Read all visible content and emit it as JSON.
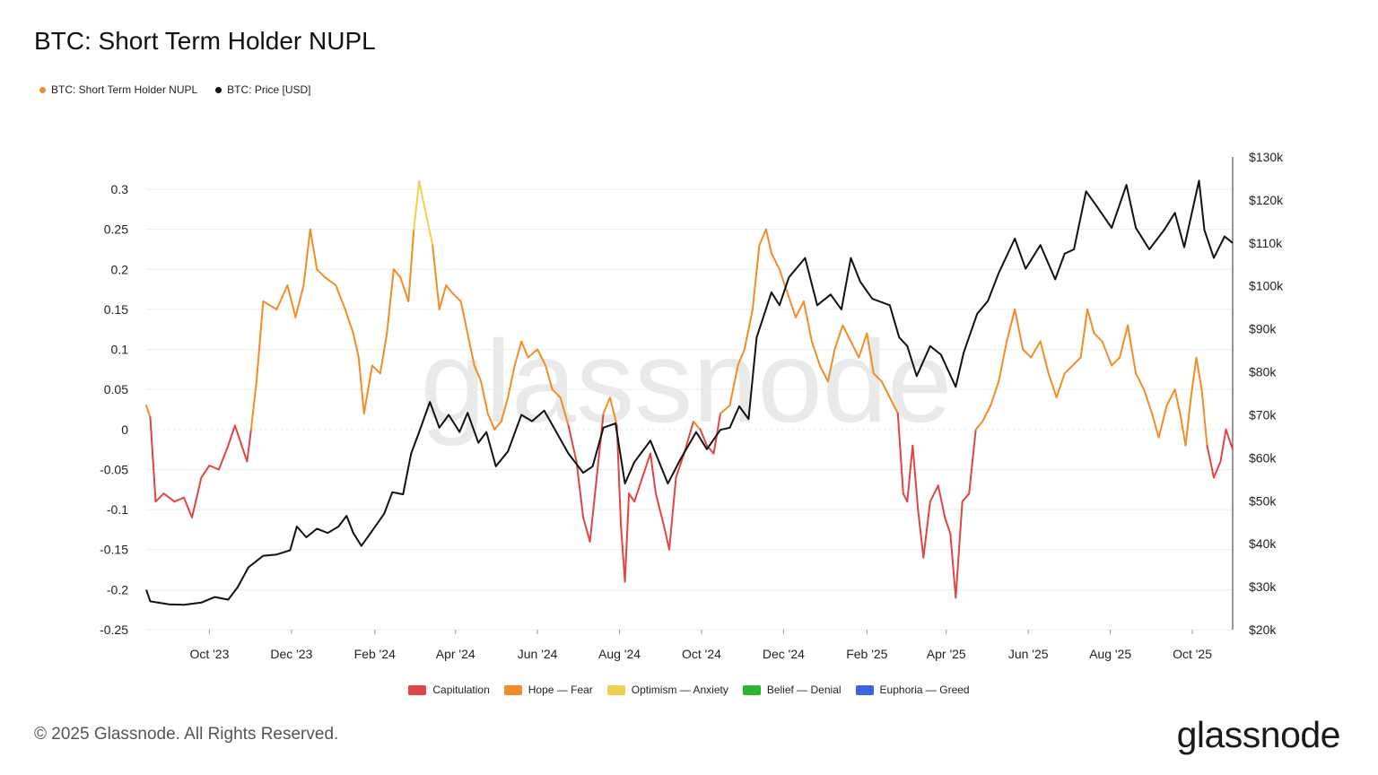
{
  "title": "BTC: Short Term Holder NUPL",
  "top_legend": [
    {
      "label": "BTC: Short Term Holder NUPL",
      "color": "#f28c28"
    },
    {
      "label": "BTC: Price [USD]",
      "color": "#111111"
    }
  ],
  "zone_legend": [
    {
      "label": "Capitulation",
      "color": "#e04545"
    },
    {
      "label": "Hope — Fear",
      "color": "#f28c28"
    },
    {
      "label": "Optimism — Anxiety",
      "color": "#f0d050"
    },
    {
      "label": "Belief — Denial",
      "color": "#2ab52a"
    },
    {
      "label": "Euphoria — Greed",
      "color": "#3e63e0"
    }
  ],
  "footer": "© 2025 Glassnode. All Rights Reserved.",
  "brand": "glassnode",
  "watermark": "glassnode",
  "chart_data": {
    "type": "line",
    "x_ticks": [
      "Oct '23",
      "Dec '23",
      "Feb '24",
      "Apr '24",
      "Jun '24",
      "Aug '24",
      "Oct '24",
      "Dec '24",
      "Feb '25",
      "Apr '25",
      "Jun '25",
      "Aug '25",
      "Oct '25"
    ],
    "left_axis": {
      "ticks": [
        "0.3",
        "0.25",
        "0.2",
        "0.15",
        "0.1",
        "0.05",
        "0",
        "-0.05",
        "-0.1",
        "-0.15",
        "-0.2",
        "-0.25"
      ],
      "ylim": [
        -0.25,
        0.3
      ]
    },
    "right_axis": {
      "ticks": [
        "$130k",
        "$120k",
        "$110k",
        "$100k",
        "$90k",
        "$80k",
        "$70k",
        "$60k",
        "$50k",
        "$40k",
        "$30k",
        "$20k"
      ],
      "ylim": [
        20000,
        130000
      ]
    },
    "x_range": [
      "2023-08-15",
      "2025-10-31"
    ],
    "series": [
      {
        "name": "BTC: Short Term Holder NUPL",
        "axis": "left",
        "colored_by_zone": true,
        "points": [
          [
            "2023-08-15",
            0.03
          ],
          [
            "2023-08-18",
            0.015
          ],
          [
            "2023-08-22",
            -0.09
          ],
          [
            "2023-08-28",
            -0.08
          ],
          [
            "2023-09-05",
            -0.09
          ],
          [
            "2023-09-12",
            -0.085
          ],
          [
            "2023-09-18",
            -0.11
          ],
          [
            "2023-09-25",
            -0.06
          ],
          [
            "2023-10-01",
            -0.045
          ],
          [
            "2023-10-08",
            -0.05
          ],
          [
            "2023-10-15",
            -0.02
          ],
          [
            "2023-10-20",
            0.005
          ],
          [
            "2023-10-25",
            -0.02
          ],
          [
            "2023-10-29",
            -0.04
          ],
          [
            "2023-11-01",
            0.0
          ],
          [
            "2023-11-05",
            0.06
          ],
          [
            "2023-11-10",
            0.16
          ],
          [
            "2023-11-20",
            0.15
          ],
          [
            "2023-11-28",
            0.18
          ],
          [
            "2023-12-04",
            0.14
          ],
          [
            "2023-12-10",
            0.18
          ],
          [
            "2023-12-15",
            0.25
          ],
          [
            "2023-12-20",
            0.2
          ],
          [
            "2023-12-26",
            0.19
          ],
          [
            "2024-01-03",
            0.18
          ],
          [
            "2024-01-10",
            0.15
          ],
          [
            "2024-01-16",
            0.12
          ],
          [
            "2024-01-20",
            0.09
          ],
          [
            "2024-01-24",
            0.02
          ],
          [
            "2024-01-30",
            0.08
          ],
          [
            "2024-02-05",
            0.07
          ],
          [
            "2024-02-10",
            0.12
          ],
          [
            "2024-02-15",
            0.2
          ],
          [
            "2024-02-20",
            0.19
          ],
          [
            "2024-02-26",
            0.16
          ],
          [
            "2024-03-01",
            0.25
          ],
          [
            "2024-03-05",
            0.31
          ],
          [
            "2024-03-10",
            0.27
          ],
          [
            "2024-03-15",
            0.23
          ],
          [
            "2024-03-20",
            0.15
          ],
          [
            "2024-03-25",
            0.18
          ],
          [
            "2024-03-30",
            0.17
          ],
          [
            "2024-04-05",
            0.16
          ],
          [
            "2024-04-10",
            0.12
          ],
          [
            "2024-04-15",
            0.08
          ],
          [
            "2024-04-20",
            0.06
          ],
          [
            "2024-04-25",
            0.02
          ],
          [
            "2024-04-30",
            0.0
          ],
          [
            "2024-05-05",
            0.01
          ],
          [
            "2024-05-10",
            0.04
          ],
          [
            "2024-05-15",
            0.08
          ],
          [
            "2024-05-20",
            0.11
          ],
          [
            "2024-05-25",
            0.09
          ],
          [
            "2024-06-01",
            0.1
          ],
          [
            "2024-06-07",
            0.08
          ],
          [
            "2024-06-12",
            0.05
          ],
          [
            "2024-06-18",
            0.04
          ],
          [
            "2024-06-24",
            0.005
          ],
          [
            "2024-06-30",
            -0.04
          ],
          [
            "2024-07-05",
            -0.11
          ],
          [
            "2024-07-10",
            -0.14
          ],
          [
            "2024-07-15",
            -0.06
          ],
          [
            "2024-07-20",
            0.02
          ],
          [
            "2024-07-25",
            0.04
          ],
          [
            "2024-07-30",
            0.005
          ],
          [
            "2024-08-02",
            -0.12
          ],
          [
            "2024-08-05",
            -0.19
          ],
          [
            "2024-08-08",
            -0.08
          ],
          [
            "2024-08-12",
            -0.09
          ],
          [
            "2024-08-18",
            -0.06
          ],
          [
            "2024-08-24",
            -0.03
          ],
          [
            "2024-08-28",
            -0.08
          ],
          [
            "2024-09-03",
            -0.12
          ],
          [
            "2024-09-07",
            -0.15
          ],
          [
            "2024-09-12",
            -0.06
          ],
          [
            "2024-09-18",
            -0.03
          ],
          [
            "2024-09-25",
            0.01
          ],
          [
            "2024-09-30",
            0.0
          ],
          [
            "2024-10-05",
            -0.02
          ],
          [
            "2024-10-10",
            -0.03
          ],
          [
            "2024-10-15",
            0.02
          ],
          [
            "2024-10-22",
            0.03
          ],
          [
            "2024-10-28",
            0.08
          ],
          [
            "2024-11-02",
            0.1
          ],
          [
            "2024-11-08",
            0.15
          ],
          [
            "2024-11-13",
            0.23
          ],
          [
            "2024-11-18",
            0.25
          ],
          [
            "2024-11-22",
            0.22
          ],
          [
            "2024-11-28",
            0.2
          ],
          [
            "2024-12-04",
            0.17
          ],
          [
            "2024-12-10",
            0.14
          ],
          [
            "2024-12-16",
            0.16
          ],
          [
            "2024-12-22",
            0.11
          ],
          [
            "2024-12-28",
            0.08
          ],
          [
            "2025-01-03",
            0.06
          ],
          [
            "2025-01-08",
            0.1
          ],
          [
            "2025-01-14",
            0.13
          ],
          [
            "2025-01-20",
            0.11
          ],
          [
            "2025-01-26",
            0.09
          ],
          [
            "2025-02-01",
            0.12
          ],
          [
            "2025-02-06",
            0.07
          ],
          [
            "2025-02-12",
            0.06
          ],
          [
            "2025-02-18",
            0.04
          ],
          [
            "2025-02-24",
            0.02
          ],
          [
            "2025-02-28",
            -0.08
          ],
          [
            "2025-03-03",
            -0.09
          ],
          [
            "2025-03-07",
            -0.02
          ],
          [
            "2025-03-11",
            -0.1
          ],
          [
            "2025-03-15",
            -0.16
          ],
          [
            "2025-03-20",
            -0.09
          ],
          [
            "2025-03-26",
            -0.07
          ],
          [
            "2025-03-31",
            -0.11
          ],
          [
            "2025-04-04",
            -0.13
          ],
          [
            "2025-04-08",
            -0.21
          ],
          [
            "2025-04-13",
            -0.09
          ],
          [
            "2025-04-18",
            -0.08
          ],
          [
            "2025-04-23",
            0.0
          ],
          [
            "2025-04-28",
            0.01
          ],
          [
            "2025-05-04",
            0.03
          ],
          [
            "2025-05-10",
            0.06
          ],
          [
            "2025-05-16",
            0.11
          ],
          [
            "2025-05-22",
            0.15
          ],
          [
            "2025-05-28",
            0.1
          ],
          [
            "2025-06-03",
            0.09
          ],
          [
            "2025-06-10",
            0.11
          ],
          [
            "2025-06-16",
            0.07
          ],
          [
            "2025-06-22",
            0.04
          ],
          [
            "2025-06-28",
            0.07
          ],
          [
            "2025-07-04",
            0.08
          ],
          [
            "2025-07-10",
            0.09
          ],
          [
            "2025-07-15",
            0.15
          ],
          [
            "2025-07-20",
            0.12
          ],
          [
            "2025-07-26",
            0.11
          ],
          [
            "2025-08-02",
            0.08
          ],
          [
            "2025-08-08",
            0.09
          ],
          [
            "2025-08-14",
            0.13
          ],
          [
            "2025-08-20",
            0.07
          ],
          [
            "2025-08-26",
            0.05
          ],
          [
            "2025-09-01",
            0.02
          ],
          [
            "2025-09-06",
            -0.01
          ],
          [
            "2025-09-12",
            0.03
          ],
          [
            "2025-09-18",
            0.05
          ],
          [
            "2025-09-22",
            0.02
          ],
          [
            "2025-09-26",
            -0.02
          ],
          [
            "2025-09-30",
            0.04
          ],
          [
            "2025-10-04",
            0.09
          ],
          [
            "2025-10-08",
            0.05
          ],
          [
            "2025-10-12",
            -0.02
          ],
          [
            "2025-10-17",
            -0.06
          ],
          [
            "2025-10-22",
            -0.04
          ],
          [
            "2025-10-26",
            0.0
          ],
          [
            "2025-10-31",
            -0.025
          ]
        ]
      },
      {
        "name": "BTC: Price [USD]",
        "axis": "right",
        "color": "#111111",
        "points": [
          [
            "2023-08-15",
            29300
          ],
          [
            "2023-08-18",
            26600
          ],
          [
            "2023-09-01",
            25900
          ],
          [
            "2023-09-12",
            25800
          ],
          [
            "2023-09-25",
            26300
          ],
          [
            "2023-10-05",
            27600
          ],
          [
            "2023-10-15",
            27000
          ],
          [
            "2023-10-22",
            29900
          ],
          [
            "2023-10-30",
            34500
          ],
          [
            "2023-11-10",
            37200
          ],
          [
            "2023-11-20",
            37500
          ],
          [
            "2023-11-30",
            38500
          ],
          [
            "2023-12-05",
            44000
          ],
          [
            "2023-12-12",
            41500
          ],
          [
            "2023-12-20",
            43500
          ],
          [
            "2023-12-28",
            42500
          ],
          [
            "2024-01-05",
            44000
          ],
          [
            "2024-01-11",
            46500
          ],
          [
            "2024-01-16",
            42500
          ],
          [
            "2024-01-22",
            39500
          ],
          [
            "2024-01-30",
            43000
          ],
          [
            "2024-02-08",
            47000
          ],
          [
            "2024-02-14",
            52000
          ],
          [
            "2024-02-22",
            51500
          ],
          [
            "2024-02-28",
            61000
          ],
          [
            "2024-03-05",
            66000
          ],
          [
            "2024-03-13",
            73000
          ],
          [
            "2024-03-20",
            67000
          ],
          [
            "2024-03-27",
            70000
          ],
          [
            "2024-04-04",
            66000
          ],
          [
            "2024-04-10",
            70500
          ],
          [
            "2024-04-18",
            63500
          ],
          [
            "2024-04-24",
            66000
          ],
          [
            "2024-05-01",
            58000
          ],
          [
            "2024-05-10",
            61500
          ],
          [
            "2024-05-20",
            70000
          ],
          [
            "2024-05-28",
            68500
          ],
          [
            "2024-06-06",
            71000
          ],
          [
            "2024-06-15",
            66000
          ],
          [
            "2024-06-24",
            61000
          ],
          [
            "2024-07-05",
            56500
          ],
          [
            "2024-07-12",
            58000
          ],
          [
            "2024-07-20",
            67000
          ],
          [
            "2024-07-29",
            68000
          ],
          [
            "2024-08-05",
            54000
          ],
          [
            "2024-08-12",
            59000
          ],
          [
            "2024-08-24",
            64000
          ],
          [
            "2024-09-06",
            54000
          ],
          [
            "2024-09-15",
            59500
          ],
          [
            "2024-09-27",
            66000
          ],
          [
            "2024-10-05",
            62000
          ],
          [
            "2024-10-15",
            66500
          ],
          [
            "2024-10-22",
            67000
          ],
          [
            "2024-10-29",
            72000
          ],
          [
            "2024-11-05",
            69000
          ],
          [
            "2024-11-11",
            88000
          ],
          [
            "2024-11-22",
            98500
          ],
          [
            "2024-11-28",
            95500
          ],
          [
            "2024-12-05",
            102000
          ],
          [
            "2024-12-17",
            106500
          ],
          [
            "2024-12-26",
            95500
          ],
          [
            "2025-01-05",
            98000
          ],
          [
            "2025-01-13",
            94500
          ],
          [
            "2025-01-20",
            106500
          ],
          [
            "2025-01-27",
            101000
          ],
          [
            "2025-02-05",
            97000
          ],
          [
            "2025-02-18",
            95500
          ],
          [
            "2025-02-25",
            88000
          ],
          [
            "2025-03-03",
            86000
          ],
          [
            "2025-03-10",
            79000
          ],
          [
            "2025-03-20",
            86000
          ],
          [
            "2025-03-28",
            84000
          ],
          [
            "2025-04-08",
            76500
          ],
          [
            "2025-04-14",
            84500
          ],
          [
            "2025-04-24",
            93500
          ],
          [
            "2025-05-02",
            96500
          ],
          [
            "2025-05-10",
            103000
          ],
          [
            "2025-05-22",
            111000
          ],
          [
            "2025-05-30",
            104000
          ],
          [
            "2025-06-10",
            109500
          ],
          [
            "2025-06-21",
            101500
          ],
          [
            "2025-06-28",
            107500
          ],
          [
            "2025-07-05",
            108500
          ],
          [
            "2025-07-14",
            122000
          ],
          [
            "2025-07-22",
            118500
          ],
          [
            "2025-08-02",
            113500
          ],
          [
            "2025-08-13",
            123500
          ],
          [
            "2025-08-20",
            113500
          ],
          [
            "2025-08-30",
            108500
          ],
          [
            "2025-09-10",
            113000
          ],
          [
            "2025-09-18",
            117000
          ],
          [
            "2025-09-25",
            109000
          ],
          [
            "2025-10-06",
            124500
          ],
          [
            "2025-10-10",
            113000
          ],
          [
            "2025-10-17",
            106500
          ],
          [
            "2025-10-25",
            111500
          ],
          [
            "2025-10-31",
            110000
          ]
        ]
      }
    ],
    "grid": true
  }
}
